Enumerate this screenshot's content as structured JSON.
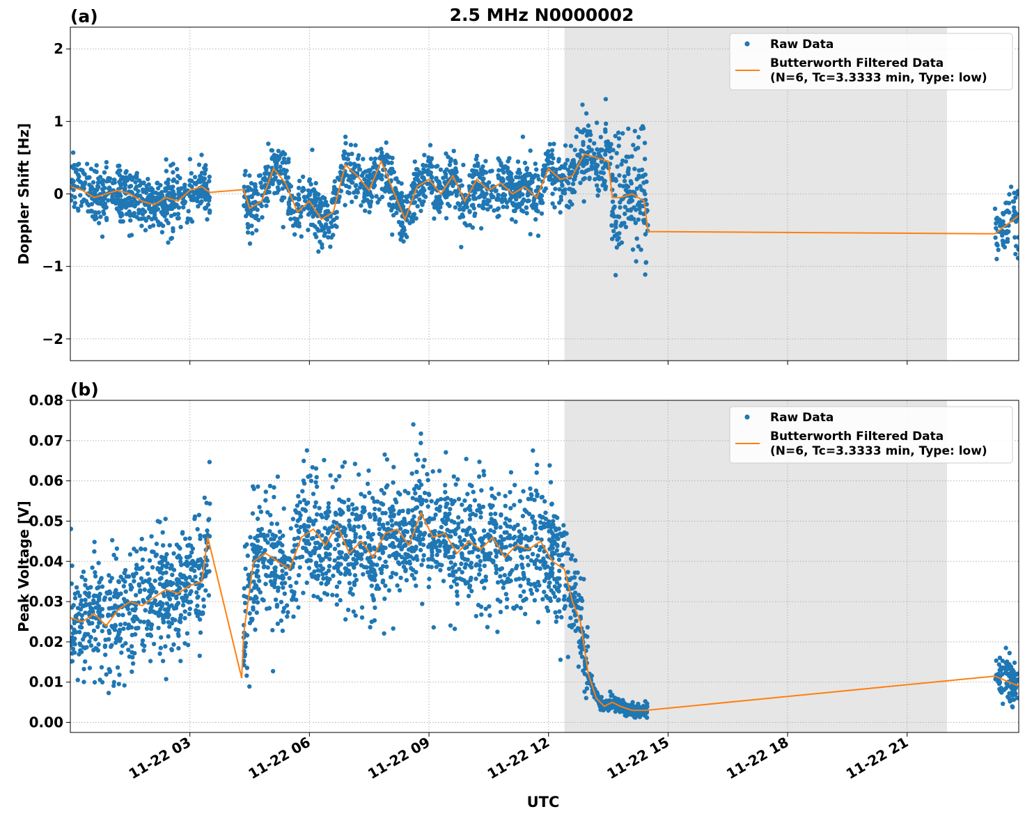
{
  "figure": {
    "title": "2.5 MHz N0000002",
    "xlabel": "UTC"
  },
  "colors": {
    "raw": "#1f77b4",
    "filtered": "#ff7f0e",
    "shade": "#e6e6e6",
    "grid": "#b0b0b0"
  },
  "chart_data": [
    {
      "type": "scatter+line",
      "panel_label": "(a)",
      "ylabel": "Doppler Shift [Hz]",
      "xlim_hours": [
        0.0,
        23.8
      ],
      "ylim": [
        -2.3,
        2.3
      ],
      "yticks": [
        -2,
        -1,
        0,
        1,
        2
      ],
      "ytick_labels": [
        "−2",
        "−1",
        "0",
        "1",
        "2"
      ],
      "xticks_hours": [
        3,
        6,
        9,
        12,
        15,
        18,
        21
      ],
      "shaded_interval_hours": [
        12.4,
        22.0
      ],
      "legend": {
        "position": "top-right",
        "raw_label": "Raw Data",
        "filtered_label_1": "Butterworth Filtered Data",
        "filtered_label_2": "(N=6, Tc=3.3333 min, Type: low)"
      },
      "segments": [
        {
          "start": 0.0,
          "end": 3.5
        },
        {
          "start": 4.35,
          "end": 14.5
        },
        {
          "start": 23.2,
          "end": 23.8
        }
      ],
      "series": [
        {
          "name": "Butterworth Filtered Data",
          "x": [
            0.0,
            0.3,
            0.6,
            0.9,
            1.2,
            1.5,
            1.8,
            2.1,
            2.4,
            2.7,
            3.0,
            3.3,
            3.5,
            4.35,
            4.5,
            4.8,
            5.1,
            5.4,
            5.7,
            6.0,
            6.3,
            6.6,
            6.9,
            7.2,
            7.5,
            7.8,
            8.1,
            8.4,
            8.7,
            9.0,
            9.3,
            9.6,
            9.9,
            10.2,
            10.5,
            10.8,
            11.1,
            11.4,
            11.7,
            12.0,
            12.3,
            12.6,
            12.9,
            13.2,
            13.5,
            13.6,
            13.8,
            14.1,
            14.4,
            14.5,
            23.2,
            23.8
          ],
          "y": [
            0.1,
            0.05,
            -0.05,
            0.0,
            0.05,
            0.0,
            -0.1,
            -0.15,
            -0.05,
            -0.1,
            0.05,
            0.1,
            0.02,
            0.06,
            -0.2,
            -0.1,
            0.35,
            0.15,
            -0.25,
            -0.1,
            -0.35,
            -0.25,
            0.4,
            0.25,
            0.05,
            0.45,
            0.05,
            -0.35,
            0.1,
            0.2,
            0.0,
            0.25,
            -0.1,
            0.2,
            0.05,
            0.15,
            0.0,
            0.1,
            -0.05,
            0.35,
            0.2,
            0.25,
            0.55,
            0.5,
            0.45,
            -0.05,
            -0.05,
            0.0,
            -0.1,
            -0.52,
            -0.55,
            -0.3
          ]
        },
        {
          "name": "Raw Data",
          "seed": 11,
          "point_count": 2200,
          "noise_base": 0.28,
          "noise_regions": [
            {
              "start": 12.4,
              "end": 13.5,
              "scale": 0.35
            },
            {
              "start": 13.5,
              "end": 14.5,
              "scale": 0.65
            }
          ]
        }
      ]
    },
    {
      "type": "scatter+line",
      "panel_label": "(b)",
      "ylabel": "Peak Voltage [V]",
      "xlim_hours": [
        0.0,
        23.8
      ],
      "ylim": [
        -0.0025,
        0.08
      ],
      "yticks": [
        0.0,
        0.01,
        0.02,
        0.03,
        0.04,
        0.05,
        0.06,
        0.07,
        0.08
      ],
      "ytick_labels": [
        "0.00",
        "0.01",
        "0.02",
        "0.03",
        "0.04",
        "0.05",
        "0.06",
        "0.07",
        "0.08"
      ],
      "xticks_hours": [
        3,
        6,
        9,
        12,
        15,
        18,
        21
      ],
      "xtick_labels": [
        "11-22 03",
        "11-22 06",
        "11-22 09",
        "11-22 12",
        "11-22 15",
        "11-22 18",
        "11-22 21"
      ],
      "shaded_interval_hours": [
        12.4,
        22.0
      ],
      "legend": {
        "position": "top-right",
        "raw_label": "Raw Data",
        "filtered_label_1": "Butterworth Filtered Data",
        "filtered_label_2": "(N=6, Tc=3.3333 min, Type: low)"
      },
      "segments": [
        {
          "start": 0.0,
          "end": 3.5
        },
        {
          "start": 4.35,
          "end": 14.5
        },
        {
          "start": 23.2,
          "end": 23.8
        }
      ],
      "series": [
        {
          "name": "Butterworth Filtered Data",
          "x": [
            0.0,
            0.3,
            0.6,
            0.9,
            1.2,
            1.5,
            1.8,
            2.1,
            2.4,
            2.7,
            3.0,
            3.3,
            3.45,
            4.3,
            4.35,
            4.6,
            4.9,
            5.2,
            5.5,
            5.8,
            6.1,
            6.4,
            6.7,
            7.0,
            7.3,
            7.6,
            7.9,
            8.2,
            8.5,
            8.8,
            9.1,
            9.4,
            9.7,
            10.0,
            10.3,
            10.6,
            10.9,
            11.2,
            11.5,
            11.8,
            12.1,
            12.4,
            12.6,
            12.8,
            13.0,
            13.2,
            13.4,
            13.6,
            13.8,
            14.1,
            14.4,
            14.45,
            23.2,
            23.8
          ],
          "y": [
            0.026,
            0.025,
            0.027,
            0.024,
            0.028,
            0.03,
            0.029,
            0.031,
            0.033,
            0.032,
            0.034,
            0.035,
            0.046,
            0.011,
            0.022,
            0.04,
            0.042,
            0.04,
            0.038,
            0.046,
            0.048,
            0.044,
            0.049,
            0.042,
            0.045,
            0.041,
            0.047,
            0.048,
            0.044,
            0.052,
            0.046,
            0.047,
            0.042,
            0.045,
            0.043,
            0.046,
            0.041,
            0.044,
            0.043,
            0.045,
            0.04,
            0.038,
            0.03,
            0.025,
            0.012,
            0.006,
            0.004,
            0.005,
            0.004,
            0.003,
            0.003,
            0.003,
            0.0115,
            0.009
          ]
        },
        {
          "name": "Raw Data",
          "seed": 29,
          "point_count": 2600,
          "noise_base": 0.011,
          "noise_regions": [
            {
              "start": 12.4,
              "end": 13.0,
              "scale": 0.008
            },
            {
              "start": 13.0,
              "end": 14.5,
              "scale": 0.0012
            },
            {
              "start": 23.2,
              "end": 23.8,
              "scale": 0.004
            }
          ]
        }
      ]
    }
  ]
}
